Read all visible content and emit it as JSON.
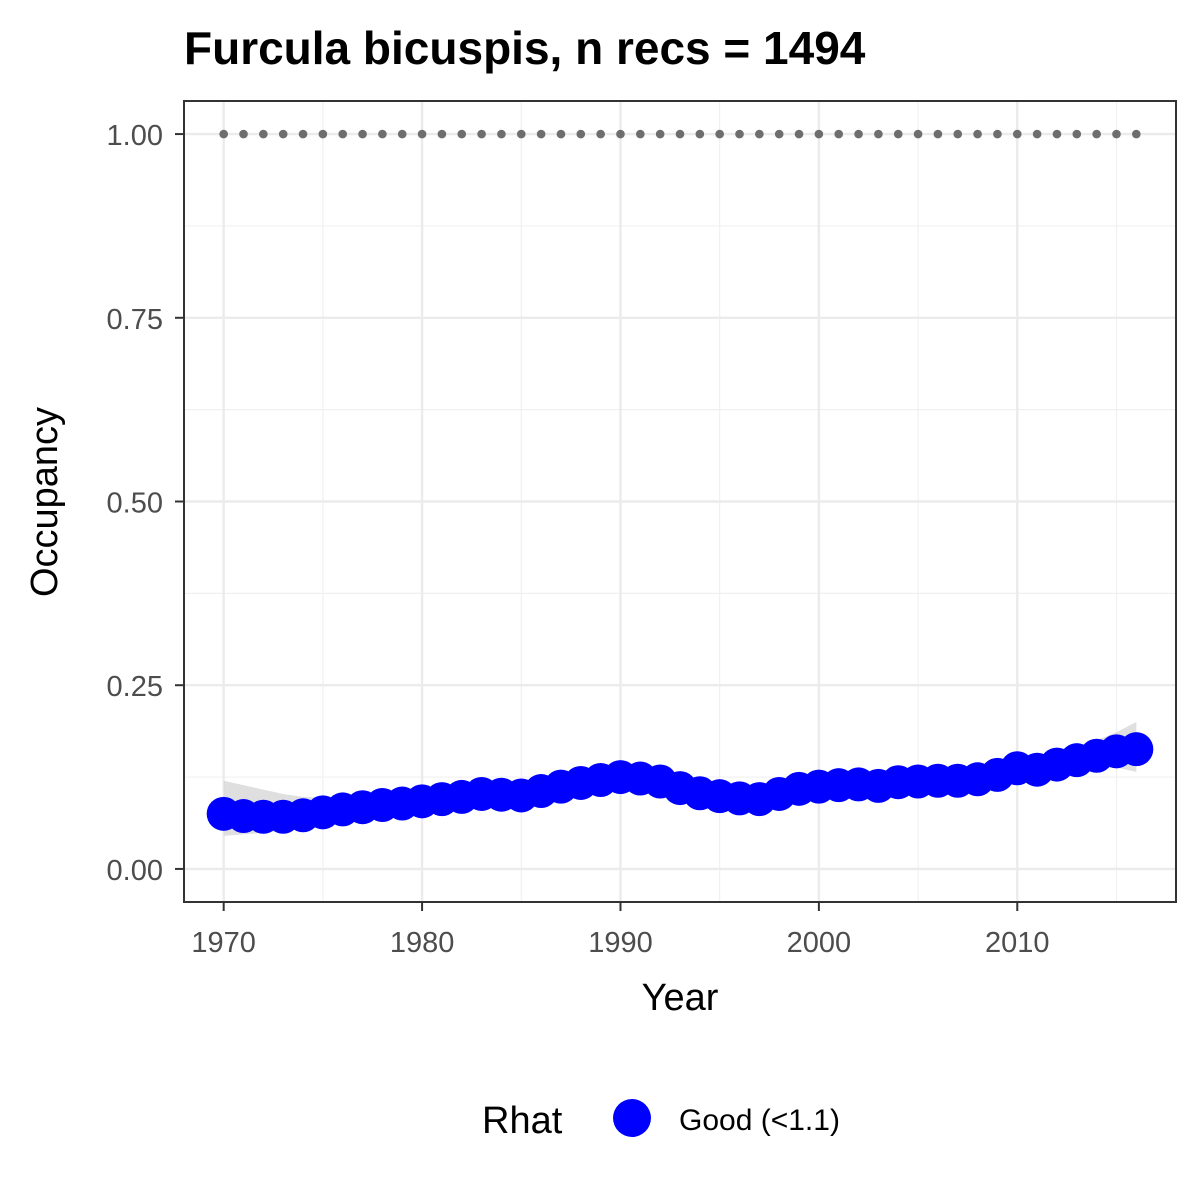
{
  "chart_data": {
    "type": "line",
    "title": "Furcula bicuspis, n recs = 1494",
    "xlabel": "Year",
    "ylabel": "Occupancy",
    "xlim": [
      1968,
      2018
    ],
    "ylim": [
      -0.045,
      1.045
    ],
    "x_ticks": [
      1970,
      1980,
      1990,
      2000,
      2010
    ],
    "x_tick_labels": [
      "1970",
      "1980",
      "1990",
      "2000",
      "2010"
    ],
    "y_ticks": [
      0,
      0.25,
      0.5,
      0.75,
      1.0
    ],
    "y_tick_labels": [
      "0.00",
      "0.25",
      "0.50",
      "0.75",
      "1.00"
    ],
    "grid": true,
    "legend": {
      "title": "Rhat",
      "position": "bottom",
      "entries": [
        {
          "label": "Good (<1.1)",
          "color": "#0000ff"
        }
      ]
    },
    "x": [
      1970,
      1971,
      1972,
      1973,
      1974,
      1975,
      1976,
      1977,
      1978,
      1979,
      1980,
      1981,
      1982,
      1983,
      1984,
      1985,
      1986,
      1987,
      1988,
      1989,
      1990,
      1991,
      1992,
      1993,
      1994,
      1995,
      1996,
      1997,
      1998,
      1999,
      2000,
      2001,
      2002,
      2003,
      2004,
      2005,
      2006,
      2007,
      2008,
      2009,
      2010,
      2011,
      2012,
      2013,
      2014,
      2015,
      2016
    ],
    "series": [
      {
        "name": "Good (<1.1)",
        "color": "#0000ff",
        "values": [
          0.075,
          0.072,
          0.071,
          0.071,
          0.073,
          0.077,
          0.081,
          0.084,
          0.087,
          0.089,
          0.092,
          0.095,
          0.098,
          0.102,
          0.101,
          0.1,
          0.106,
          0.112,
          0.117,
          0.121,
          0.125,
          0.123,
          0.119,
          0.11,
          0.103,
          0.099,
          0.096,
          0.095,
          0.102,
          0.109,
          0.112,
          0.114,
          0.115,
          0.113,
          0.118,
          0.119,
          0.12,
          0.12,
          0.122,
          0.128,
          0.137,
          0.135,
          0.142,
          0.148,
          0.154,
          0.16,
          0.163
        ]
      },
      {
        "name": "",
        "color": "#6e6e6e",
        "style": "dotted",
        "values": [
          1,
          1,
          1,
          1,
          1,
          1,
          1,
          1,
          1,
          1,
          1,
          1,
          1,
          1,
          1,
          1,
          1,
          1,
          1,
          1,
          1,
          1,
          1,
          1,
          1,
          1,
          1,
          1,
          1,
          1,
          1,
          1,
          1,
          1,
          1,
          1,
          1,
          1,
          1,
          1,
          1,
          1,
          1,
          1,
          1,
          1,
          1
        ]
      }
    ],
    "ribbon": {
      "color": "#d9d9d9",
      "lower": [
        0.045,
        0.047,
        0.049,
        0.052,
        0.055,
        0.059,
        0.064,
        0.068,
        0.071,
        0.074,
        0.077,
        0.08,
        0.083,
        0.087,
        0.086,
        0.085,
        0.092,
        0.099,
        0.104,
        0.108,
        0.112,
        0.11,
        0.106,
        0.097,
        0.09,
        0.086,
        0.083,
        0.082,
        0.089,
        0.096,
        0.099,
        0.101,
        0.102,
        0.1,
        0.105,
        0.106,
        0.107,
        0.107,
        0.109,
        0.115,
        0.124,
        0.122,
        0.128,
        0.132,
        0.136,
        0.138,
        0.132
      ],
      "upper": [
        0.12,
        0.114,
        0.108,
        0.102,
        0.098,
        0.097,
        0.099,
        0.101,
        0.103,
        0.104,
        0.107,
        0.11,
        0.113,
        0.117,
        0.116,
        0.115,
        0.12,
        0.126,
        0.131,
        0.136,
        0.142,
        0.138,
        0.133,
        0.123,
        0.116,
        0.112,
        0.109,
        0.108,
        0.115,
        0.122,
        0.125,
        0.127,
        0.128,
        0.126,
        0.131,
        0.132,
        0.133,
        0.133,
        0.135,
        0.141,
        0.15,
        0.148,
        0.156,
        0.165,
        0.175,
        0.186,
        0.2
      ]
    }
  }
}
